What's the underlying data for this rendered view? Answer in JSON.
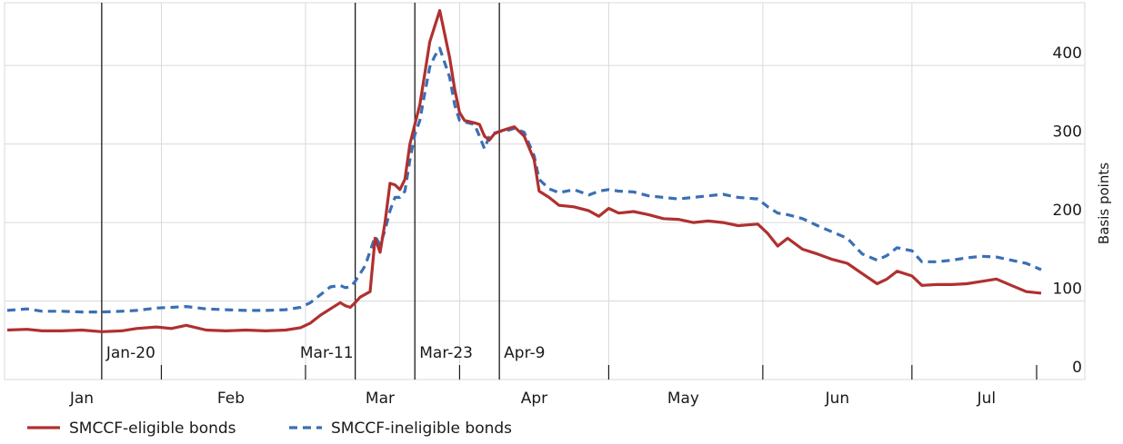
{
  "chart_data": {
    "type": "line",
    "title": "",
    "ylabel": "Basis points",
    "ylim": [
      0,
      480
    ],
    "y_ticks": [
      0,
      100,
      200,
      300,
      400
    ],
    "y_tick_labels": [
      "0",
      "100",
      "200",
      "300",
      "400"
    ],
    "y_axis_side": "right",
    "grid": true,
    "legend_position": "bottom-left",
    "x_range": [
      "2020-01-01",
      "2020-07-27"
    ],
    "month_labels": [
      "Jan",
      "Feb",
      "Mar",
      "Apr",
      "May",
      "Jun",
      "Jul"
    ],
    "month_ticks": [
      "2020-01-01",
      "2020-02-01",
      "2020-03-01",
      "2020-04-01",
      "2020-05-01",
      "2020-06-01",
      "2020-07-01"
    ],
    "month_label_dates": [
      "2020-01-16",
      "2020-02-15",
      "2020-03-16",
      "2020-04-16",
      "2020-05-16",
      "2020-06-16",
      "2020-07-16"
    ],
    "event_lines": [
      {
        "date": "2020-01-20",
        "label": "Jan-20"
      },
      {
        "date": "2020-03-11",
        "label": "Mar-11"
      },
      {
        "date": "2020-03-23",
        "label": "Mar-23"
      },
      {
        "date": "2020-04-09",
        "label": "Apr-9"
      }
    ],
    "series": [
      {
        "name": "SMCCF-eligible bonds",
        "color": "#b03030",
        "style": "solid",
        "points": [
          [
            "2020-01-01",
            63
          ],
          [
            "2020-01-05",
            64
          ],
          [
            "2020-01-08",
            62
          ],
          [
            "2020-01-12",
            62
          ],
          [
            "2020-01-16",
            63
          ],
          [
            "2020-01-20",
            61
          ],
          [
            "2020-01-24",
            62
          ],
          [
            "2020-01-27",
            65
          ],
          [
            "2020-01-31",
            67
          ],
          [
            "2020-02-03",
            65
          ],
          [
            "2020-02-06",
            69
          ],
          [
            "2020-02-10",
            63
          ],
          [
            "2020-02-14",
            62
          ],
          [
            "2020-02-18",
            63
          ],
          [
            "2020-02-22",
            62
          ],
          [
            "2020-02-26",
            63
          ],
          [
            "2020-02-29",
            66
          ],
          [
            "2020-03-02",
            72
          ],
          [
            "2020-03-04",
            82
          ],
          [
            "2020-03-06",
            90
          ],
          [
            "2020-03-08",
            98
          ],
          [
            "2020-03-09",
            94
          ],
          [
            "2020-03-10",
            92
          ],
          [
            "2020-03-11",
            98
          ],
          [
            "2020-03-12",
            105
          ],
          [
            "2020-03-14",
            112
          ],
          [
            "2020-03-15",
            180
          ],
          [
            "2020-03-16",
            162
          ],
          [
            "2020-03-17",
            200
          ],
          [
            "2020-03-18",
            250
          ],
          [
            "2020-03-19",
            248
          ],
          [
            "2020-03-20",
            242
          ],
          [
            "2020-03-21",
            255
          ],
          [
            "2020-03-22",
            300
          ],
          [
            "2020-03-23",
            325
          ],
          [
            "2020-03-24",
            350
          ],
          [
            "2020-03-25",
            390
          ],
          [
            "2020-03-26",
            430
          ],
          [
            "2020-03-27",
            450
          ],
          [
            "2020-03-28",
            470
          ],
          [
            "2020-03-30",
            410
          ],
          [
            "2020-03-31",
            370
          ],
          [
            "2020-04-01",
            340
          ],
          [
            "2020-04-02",
            330
          ],
          [
            "2020-04-04",
            327
          ],
          [
            "2020-04-05",
            325
          ],
          [
            "2020-04-06",
            310
          ],
          [
            "2020-04-07",
            305
          ],
          [
            "2020-04-08",
            313
          ],
          [
            "2020-04-09",
            316
          ],
          [
            "2020-04-11",
            320
          ],
          [
            "2020-04-12",
            322
          ],
          [
            "2020-04-14",
            310
          ],
          [
            "2020-04-16",
            280
          ],
          [
            "2020-04-17",
            240
          ],
          [
            "2020-04-19",
            232
          ],
          [
            "2020-04-21",
            222
          ],
          [
            "2020-04-24",
            220
          ],
          [
            "2020-04-27",
            215
          ],
          [
            "2020-04-29",
            208
          ],
          [
            "2020-05-01",
            218
          ],
          [
            "2020-05-03",
            212
          ],
          [
            "2020-05-06",
            214
          ],
          [
            "2020-05-09",
            210
          ],
          [
            "2020-05-12",
            205
          ],
          [
            "2020-05-15",
            204
          ],
          [
            "2020-05-18",
            200
          ],
          [
            "2020-05-21",
            202
          ],
          [
            "2020-05-24",
            200
          ],
          [
            "2020-05-27",
            196
          ],
          [
            "2020-05-31",
            198
          ],
          [
            "2020-06-02",
            186
          ],
          [
            "2020-06-04",
            170
          ],
          [
            "2020-06-06",
            180
          ],
          [
            "2020-06-09",
            166
          ],
          [
            "2020-06-12",
            160
          ],
          [
            "2020-06-15",
            153
          ],
          [
            "2020-06-18",
            148
          ],
          [
            "2020-06-21",
            135
          ],
          [
            "2020-06-24",
            122
          ],
          [
            "2020-06-26",
            128
          ],
          [
            "2020-06-28",
            138
          ],
          [
            "2020-07-01",
            132
          ],
          [
            "2020-07-03",
            120
          ],
          [
            "2020-07-06",
            121
          ],
          [
            "2020-07-09",
            121
          ],
          [
            "2020-07-12",
            122
          ],
          [
            "2020-07-15",
            125
          ],
          [
            "2020-07-18",
            128
          ],
          [
            "2020-07-21",
            120
          ],
          [
            "2020-07-24",
            112
          ],
          [
            "2020-07-27",
            110
          ]
        ]
      },
      {
        "name": "SMCCF-ineligible bonds",
        "color": "#3a6fb5",
        "style": "dashed",
        "points": [
          [
            "2020-01-01",
            88
          ],
          [
            "2020-01-05",
            90
          ],
          [
            "2020-01-08",
            87
          ],
          [
            "2020-01-12",
            87
          ],
          [
            "2020-01-16",
            86
          ],
          [
            "2020-01-20",
            86
          ],
          [
            "2020-01-24",
            87
          ],
          [
            "2020-01-27",
            88
          ],
          [
            "2020-01-31",
            91
          ],
          [
            "2020-02-03",
            92
          ],
          [
            "2020-02-06",
            93
          ],
          [
            "2020-02-10",
            90
          ],
          [
            "2020-02-14",
            89
          ],
          [
            "2020-02-18",
            88
          ],
          [
            "2020-02-22",
            88
          ],
          [
            "2020-02-26",
            89
          ],
          [
            "2020-02-29",
            92
          ],
          [
            "2020-03-02",
            98
          ],
          [
            "2020-03-04",
            108
          ],
          [
            "2020-03-06",
            118
          ],
          [
            "2020-03-08",
            120
          ],
          [
            "2020-03-09",
            117
          ],
          [
            "2020-03-10",
            118
          ],
          [
            "2020-03-11",
            125
          ],
          [
            "2020-03-12",
            135
          ],
          [
            "2020-03-13",
            145
          ],
          [
            "2020-03-15",
            182
          ],
          [
            "2020-03-16",
            172
          ],
          [
            "2020-03-17",
            190
          ],
          [
            "2020-03-18",
            215
          ],
          [
            "2020-03-19",
            232
          ],
          [
            "2020-03-20",
            232
          ],
          [
            "2020-03-21",
            240
          ],
          [
            "2020-03-22",
            280
          ],
          [
            "2020-03-23",
            312
          ],
          [
            "2020-03-24",
            330
          ],
          [
            "2020-03-25",
            365
          ],
          [
            "2020-03-26",
            398
          ],
          [
            "2020-03-27",
            412
          ],
          [
            "2020-03-28",
            422
          ],
          [
            "2020-03-30",
            385
          ],
          [
            "2020-03-31",
            350
          ],
          [
            "2020-04-01",
            330
          ],
          [
            "2020-04-02",
            328
          ],
          [
            "2020-04-04",
            325
          ],
          [
            "2020-04-05",
            310
          ],
          [
            "2020-04-06",
            294
          ],
          [
            "2020-04-07",
            310
          ],
          [
            "2020-04-08",
            314
          ],
          [
            "2020-04-09",
            316
          ],
          [
            "2020-04-11",
            318
          ],
          [
            "2020-04-12",
            320
          ],
          [
            "2020-04-14",
            315
          ],
          [
            "2020-04-16",
            285
          ],
          [
            "2020-04-17",
            255
          ],
          [
            "2020-04-19",
            243
          ],
          [
            "2020-04-21",
            238
          ],
          [
            "2020-04-24",
            242
          ],
          [
            "2020-04-27",
            235
          ],
          [
            "2020-04-29",
            240
          ],
          [
            "2020-05-01",
            242
          ],
          [
            "2020-05-03",
            240
          ],
          [
            "2020-05-06",
            239
          ],
          [
            "2020-05-09",
            234
          ],
          [
            "2020-05-12",
            232
          ],
          [
            "2020-05-15",
            230
          ],
          [
            "2020-05-18",
            232
          ],
          [
            "2020-05-21",
            234
          ],
          [
            "2020-05-24",
            236
          ],
          [
            "2020-05-27",
            232
          ],
          [
            "2020-05-31",
            230
          ],
          [
            "2020-06-02",
            220
          ],
          [
            "2020-06-04",
            212
          ],
          [
            "2020-06-06",
            210
          ],
          [
            "2020-06-09",
            205
          ],
          [
            "2020-06-12",
            196
          ],
          [
            "2020-06-15",
            188
          ],
          [
            "2020-06-18",
            180
          ],
          [
            "2020-06-21",
            160
          ],
          [
            "2020-06-24",
            152
          ],
          [
            "2020-06-26",
            158
          ],
          [
            "2020-06-28",
            168
          ],
          [
            "2020-07-01",
            164
          ],
          [
            "2020-07-03",
            150
          ],
          [
            "2020-07-06",
            150
          ],
          [
            "2020-07-09",
            152
          ],
          [
            "2020-07-12",
            155
          ],
          [
            "2020-07-15",
            157
          ],
          [
            "2020-07-18",
            156
          ],
          [
            "2020-07-21",
            152
          ],
          [
            "2020-07-24",
            148
          ],
          [
            "2020-07-27",
            140
          ]
        ]
      }
    ],
    "legend": [
      {
        "label": "SMCCF-eligible bonds",
        "color": "#b03030",
        "style": "solid"
      },
      {
        "label": "SMCCF-ineligible bonds",
        "color": "#3a6fb5",
        "style": "dashed"
      }
    ]
  }
}
